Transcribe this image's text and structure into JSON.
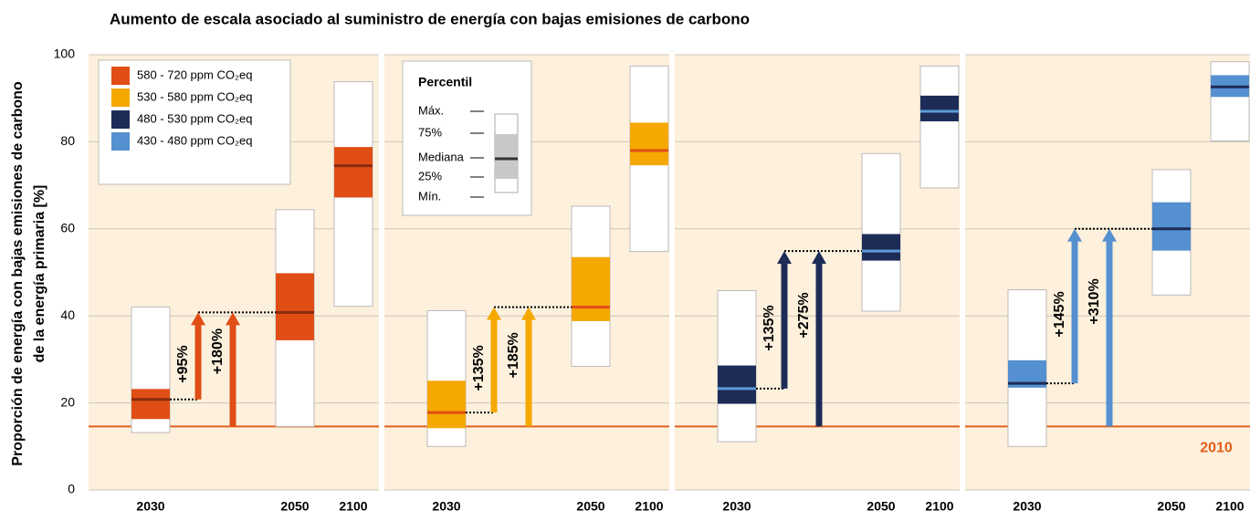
{
  "chart_data": {
    "type": "box",
    "title": "Aumento de escala asociado al suministro de energía con bajas emisiones de carbono",
    "y_label": [
      "Proporción de energía con bajas emisiones de carbono",
      "de la energía primaria [%]"
    ],
    "ylim": [
      0,
      100
    ],
    "yticks": [
      0,
      20,
      40,
      60,
      80,
      100
    ],
    "grid": true,
    "categories": [
      "2030",
      "2050",
      "2100"
    ],
    "baseline": {
      "label": "2010",
      "value": 14.6,
      "color": "#e0601c"
    },
    "percentile_legend": {
      "title": "Percentil",
      "labels": [
        "Máx.",
        "75%",
        "Mediana",
        "25%",
        "Mín."
      ]
    },
    "series": [
      {
        "name": "580 - 720  ppm CO₂eq",
        "color": "#e04e16",
        "median_color": "#8a2a0e",
        "boxes": [
          {
            "min": 13.2,
            "q1": 16.3,
            "median": 20.8,
            "q3": 23.2,
            "max": 42
          },
          {
            "min": 14.6,
            "q1": 34.4,
            "median": 40.8,
            "q3": 49.8,
            "max": 64.4
          },
          {
            "min": 42.2,
            "q1": 67.2,
            "median": 74.5,
            "q3": 78.8,
            "max": 93.8
          }
        ],
        "increases": [
          "+95%",
          "+180%"
        ]
      },
      {
        "name": "530 - 580  ppm CO₂eq",
        "color": "#f5a800",
        "median_color": "#e04e16",
        "boxes": [
          {
            "min": 10,
            "q1": 14.2,
            "median": 17.8,
            "q3": 25.1,
            "max": 41.2
          },
          {
            "min": 28.4,
            "q1": 38.8,
            "median": 42,
            "q3": 53.5,
            "max": 65.2
          },
          {
            "min": 54.8,
            "q1": 74.6,
            "median": 78,
            "q3": 84.4,
            "max": 97.4
          }
        ],
        "increases": [
          "+135%",
          "+185%"
        ]
      },
      {
        "name": "480 - 530  ppm CO₂eq",
        "color": "#1d2b57",
        "median_color": "#5b9bd8",
        "boxes": [
          {
            "min": 11.1,
            "q1": 19.8,
            "median": 23.3,
            "q3": 28.6,
            "max": 45.8
          },
          {
            "min": 41.1,
            "q1": 52.7,
            "median": 54.9,
            "q3": 58.8,
            "max": 77.3
          },
          {
            "min": 69.4,
            "q1": 84.7,
            "median": 87,
            "q3": 90.6,
            "max": 97.4
          }
        ],
        "increases": [
          "+135%",
          "+275%"
        ]
      },
      {
        "name": "430 - 480  ppm CO₂eq",
        "color": "#5590d0",
        "median_color": "#1d2b57",
        "boxes": [
          {
            "min": 10,
            "q1": 23.5,
            "median": 24.5,
            "q3": 29.8,
            "max": 46
          },
          {
            "min": 44.8,
            "q1": 55,
            "median": 60,
            "q3": 66.1,
            "max": 73.6
          },
          {
            "min": 80.2,
            "q1": 90.3,
            "median": 92.6,
            "q3": 95.3,
            "max": 98.4
          }
        ],
        "increases": [
          "+145%",
          "+310%"
        ]
      }
    ]
  }
}
